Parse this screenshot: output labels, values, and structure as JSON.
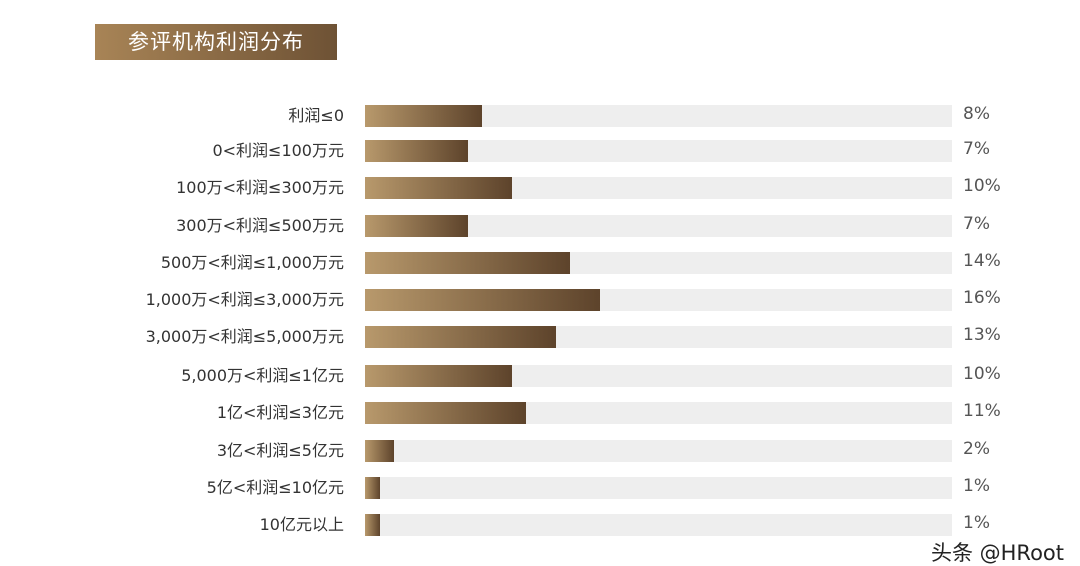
{
  "chart_data": {
    "type": "bar",
    "orientation": "horizontal",
    "title": "参评机构利润分布",
    "categories": [
      "利润≤0",
      "0<利润≤100万元",
      "100万<利润≤300万元",
      "300万<利润≤500万元",
      "500万<利润≤1,000万元",
      "1,000万<利润≤3,000万元",
      "3,000万<利润≤5,000万元",
      "5,000万<利润≤1亿元",
      "1亿<利润≤3亿元",
      "3亿<利润≤5亿元",
      "5亿<利润≤10亿元",
      "10亿元以上"
    ],
    "values": [
      8,
      7,
      10,
      7,
      14,
      16,
      13,
      10,
      11,
      2,
      1,
      1
    ],
    "value_labels": [
      "8%",
      "7%",
      "10%",
      "7%",
      "14%",
      "16%",
      "13%",
      "10%",
      "11%",
      "2%",
      "1%",
      "1%"
    ],
    "xlim": [
      0,
      40
    ],
    "grid": false,
    "colors": {
      "bar_start": "#b8996c",
      "bar_end": "#5d432b",
      "track": "#eeeeee"
    }
  },
  "watermark": "头条 @HRoot"
}
